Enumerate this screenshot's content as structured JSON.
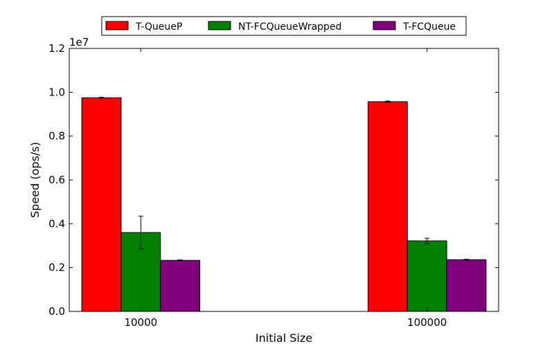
{
  "chart_data": {
    "type": "bar",
    "title": "",
    "xlabel": "Initial Size",
    "ylabel": "Speed (ops/s)",
    "y_multiplier_label": "1e7",
    "categories": [
      "10000",
      "100000"
    ],
    "ylim": [
      0,
      1.2
    ],
    "y_ticks": [
      0.0,
      0.2,
      0.4,
      0.6,
      0.8,
      1.0,
      1.2
    ],
    "y_tick_labels": [
      "0.0",
      "0.2",
      "0.4",
      "0.6",
      "0.8",
      "1.0",
      "1.2"
    ],
    "grid": false,
    "legend_position": "top-center",
    "series": [
      {
        "name": "T-QueueP",
        "color": "#ff0000",
        "values": [
          0.975,
          0.957
        ],
        "errors": [
          0.002,
          0.003
        ]
      },
      {
        "name": "NT-FCQueueWrapped",
        "color": "#008000",
        "values": [
          0.36,
          0.322
        ],
        "errors": [
          0.075,
          0.012
        ]
      },
      {
        "name": "T-FCQueue",
        "color": "#800080",
        "values": [
          0.233,
          0.236
        ],
        "errors": [
          0.002,
          0.002
        ]
      }
    ]
  }
}
